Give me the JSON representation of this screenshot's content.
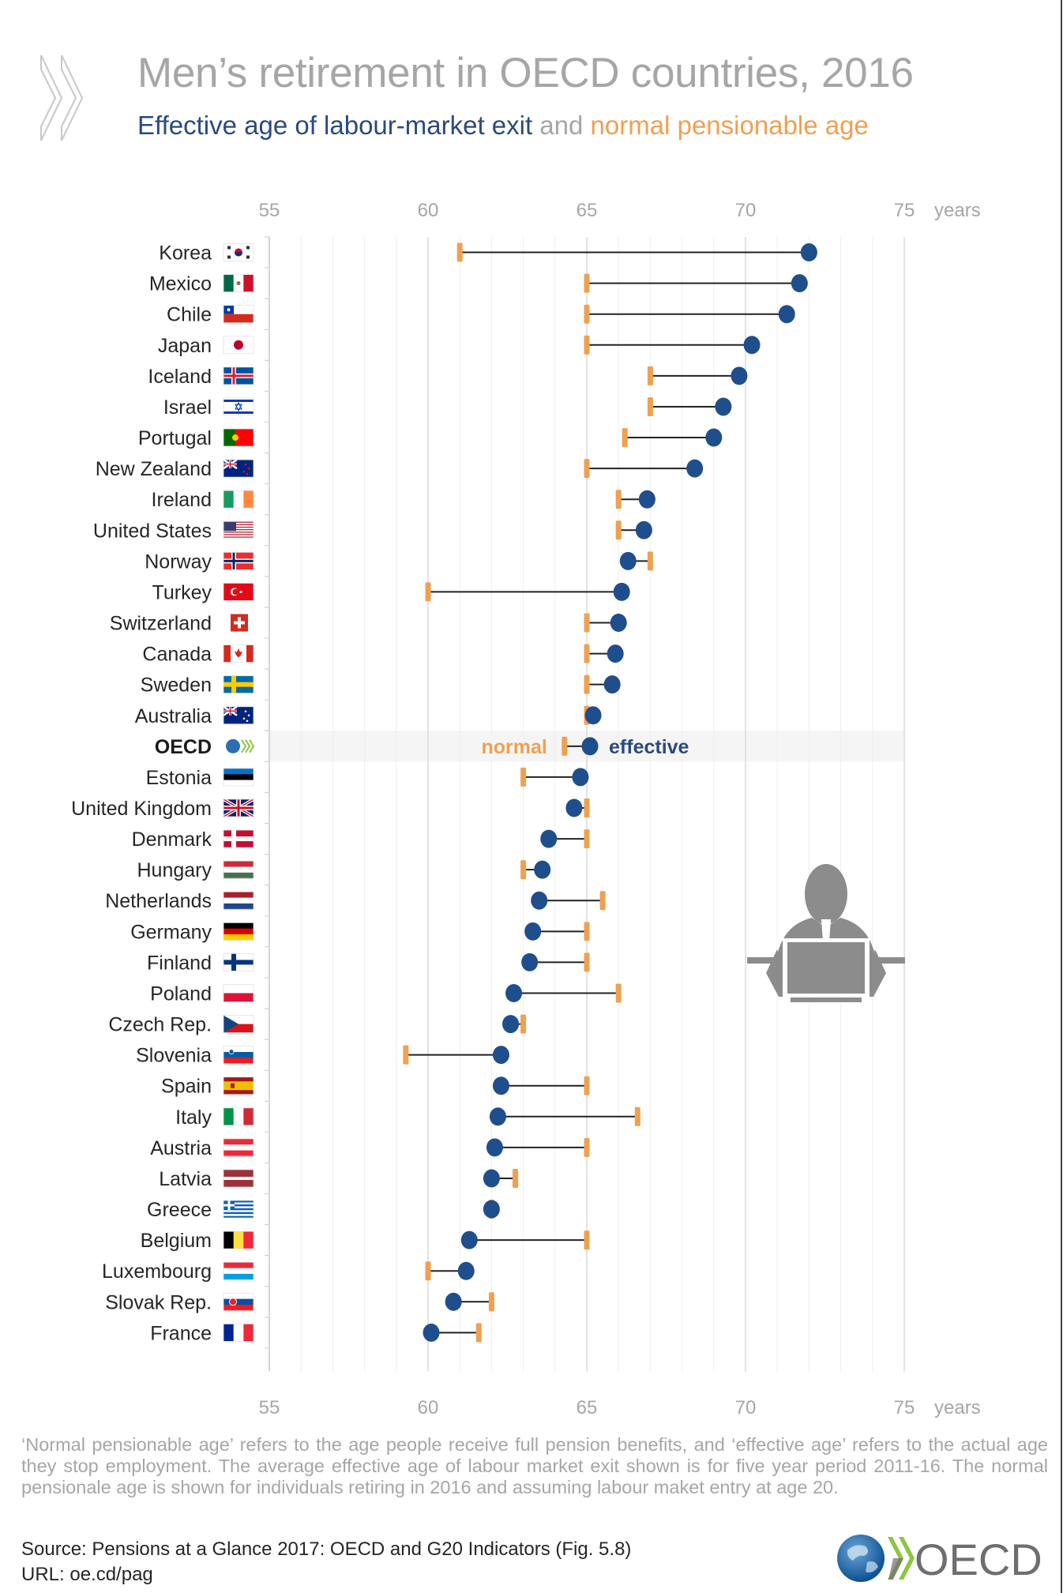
{
  "header": {
    "title": "Men’s retirement in OECD countries, 2016",
    "subtitle_part1": "Effective age of labour-market exit",
    "subtitle_part2": " and ",
    "subtitle_part3": "normal pensionable age"
  },
  "colors": {
    "effective": "#1f4e8c",
    "normal": "#f0a050",
    "connector": "#222222",
    "grid": "#e6e6e6",
    "title_grey": "#a6a6a6",
    "highlight_row": "#f5f5f5",
    "icon_grey": "#8c8c8c"
  },
  "chart_data": {
    "type": "dumbbell",
    "title": "Men’s retirement in OECD countries, 2016",
    "subtitle": "Effective age of labour-market exit and normal pensionable age",
    "x_unit_label": "years",
    "xlim": [
      55,
      75
    ],
    "x_ticks": [
      55,
      60,
      65,
      70,
      75
    ],
    "minor_tick_step": 1,
    "grid": true,
    "highlight_category": "OECD",
    "legend": {
      "normal": "normal",
      "effective": "effective",
      "placement": "inline on OECD row"
    },
    "categories": [
      "Korea",
      "Mexico",
      "Chile",
      "Japan",
      "Iceland",
      "Israel",
      "Portugal",
      "New Zealand",
      "Ireland",
      "United States",
      "Norway",
      "Turkey",
      "Switzerland",
      "Canada",
      "Sweden",
      "Australia",
      "OECD",
      "Estonia",
      "United Kingdom",
      "Denmark",
      "Hungary",
      "Netherlands",
      "Germany",
      "Finland",
      "Poland",
      "Czech Rep.",
      "Slovenia",
      "Spain",
      "Italy",
      "Austria",
      "Latvia",
      "Greece",
      "Belgium",
      "Luxembourg",
      "Slovak Rep.",
      "France"
    ],
    "series": [
      {
        "name": "effective age of labour-market exit",
        "values": [
          72.0,
          71.7,
          71.3,
          70.2,
          69.8,
          69.3,
          69.0,
          68.4,
          66.9,
          66.8,
          66.3,
          66.1,
          66.0,
          65.9,
          65.8,
          65.2,
          65.1,
          64.8,
          64.6,
          63.8,
          63.6,
          63.5,
          63.3,
          63.2,
          62.7,
          62.6,
          62.3,
          62.3,
          62.2,
          62.1,
          62.0,
          62.0,
          61.3,
          61.2,
          60.8,
          60.1
        ]
      },
      {
        "name": "normal pensionable age",
        "values": [
          61.0,
          65.0,
          65.0,
          65.0,
          67.0,
          67.0,
          66.2,
          65.0,
          66.0,
          66.0,
          67.0,
          60.0,
          65.0,
          65.0,
          65.0,
          65.0,
          64.3,
          63.0,
          65.0,
          65.0,
          63.0,
          65.5,
          65.0,
          65.0,
          66.0,
          63.0,
          59.3,
          65.0,
          66.6,
          65.0,
          62.75,
          62.0,
          65.0,
          60.0,
          62.0,
          61.6
        ]
      }
    ],
    "flags": [
      "korea",
      "mexico",
      "chile",
      "japan",
      "iceland",
      "israel",
      "portugal",
      "new-zealand",
      "ireland",
      "united-states",
      "norway",
      "turkey",
      "switzerland",
      "canada",
      "sweden",
      "australia",
      "oecd",
      "estonia",
      "united-kingdom",
      "denmark",
      "hungary",
      "netherlands",
      "germany",
      "finland",
      "poland",
      "czech-rep",
      "slovenia",
      "spain",
      "italy",
      "austria",
      "latvia",
      "greece",
      "belgium",
      "luxembourg",
      "slovak-rep",
      "france"
    ]
  },
  "footer": {
    "note": "‘Normal pensionable age’ refers to the age people receive full pension benefits, and ‘effective age’ refers to the actual age they stop employment. The average effective age of labour market exit shown is for five year period 2011-16. The normal pensionale age is shown for individuals retiring in 2016 and assuming labour maket entry at age 20.",
    "source": "Source: Pensions at a Glance 2017: OECD and G20 Indicators (Fig. 5.8)",
    "url": "URL: oe.cd/pag",
    "logo_text": "OECD"
  },
  "icons": {
    "title_logo": "oecd-chevrons-icon",
    "illustration": "person-at-laptop-icon",
    "footer_logo": "oecd-globe-logo"
  }
}
